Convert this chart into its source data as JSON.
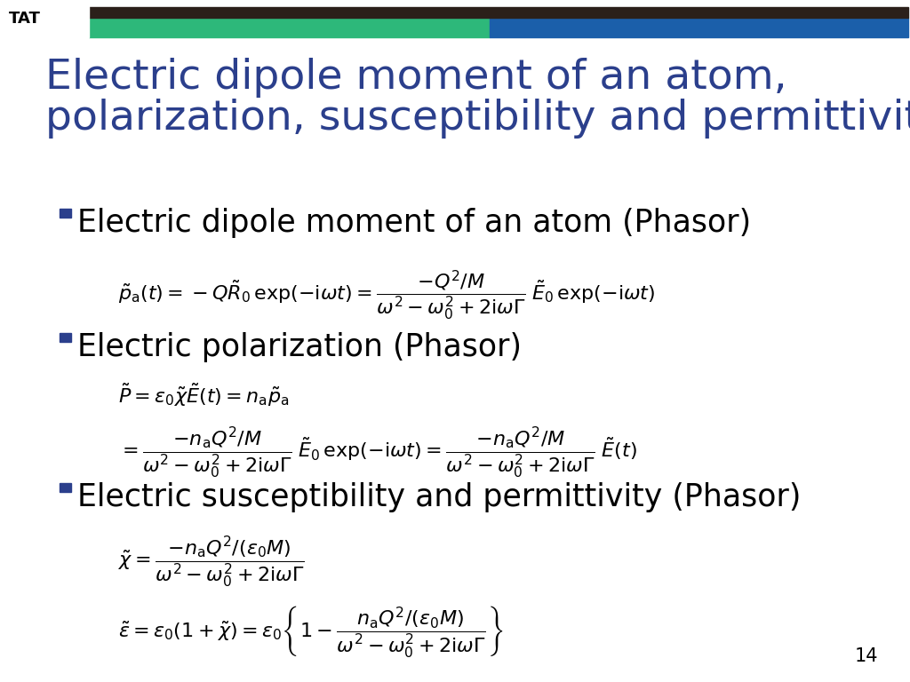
{
  "title_line1": "Electric dipole moment of an atom,",
  "title_line2": "polarization, susceptibility and permittivity",
  "title_color": "#2B3F8C",
  "title_fontsize": 34,
  "background_color": "#FFFFFF",
  "header_green": "#2DB87A",
  "header_blue": "#1B5FAA",
  "header_dark": "#2B201A",
  "bullet_color": "#2B3F8C",
  "bullet1": "Electric dipole moment of an atom (Phasor)",
  "bullet2": "Electric polarization (Phasor)",
  "bullet3": "Electric susceptibility and permittivity (Phasor)",
  "page_number": "14",
  "eq_fontsize": 16,
  "bullet_fontsize": 25,
  "text_color": "#000000"
}
